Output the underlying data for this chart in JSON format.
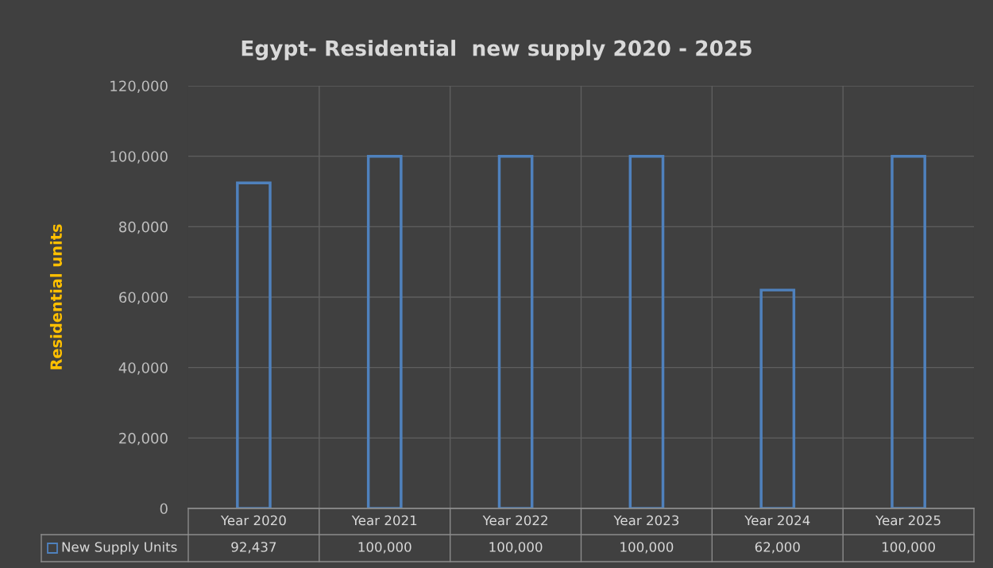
{
  "chart_data": {
    "type": "bar",
    "title": "Egypt- Residential  new supply 2020 - 2025",
    "ylabel": "Residential units",
    "categories": [
      "Year 2020",
      "Year 2021",
      "Year 2022",
      "Year 2023",
      "Year 2024",
      "Year 2025"
    ],
    "series": [
      {
        "name": "New Supply Units",
        "color": "#4f81bd",
        "values": [
          92437,
          100000,
          100000,
          100000,
          62000,
          100000
        ],
        "value_labels": [
          "92,437",
          "100,000",
          "100,000",
          "100,000",
          "62,000",
          "100,000"
        ]
      }
    ],
    "ylim": [
      0,
      120000
    ],
    "yticks": [
      {
        "value": 0,
        "label": "0"
      },
      {
        "value": 20000,
        "label": "20,000"
      },
      {
        "value": 40000,
        "label": "40,000"
      },
      {
        "value": 60000,
        "label": "60,000"
      },
      {
        "value": 80000,
        "label": "80,000"
      },
      {
        "value": 100000,
        "label": "100,000"
      },
      {
        "value": 120000,
        "label": "120,000"
      }
    ],
    "grid": true,
    "legend": "bottom left"
  }
}
